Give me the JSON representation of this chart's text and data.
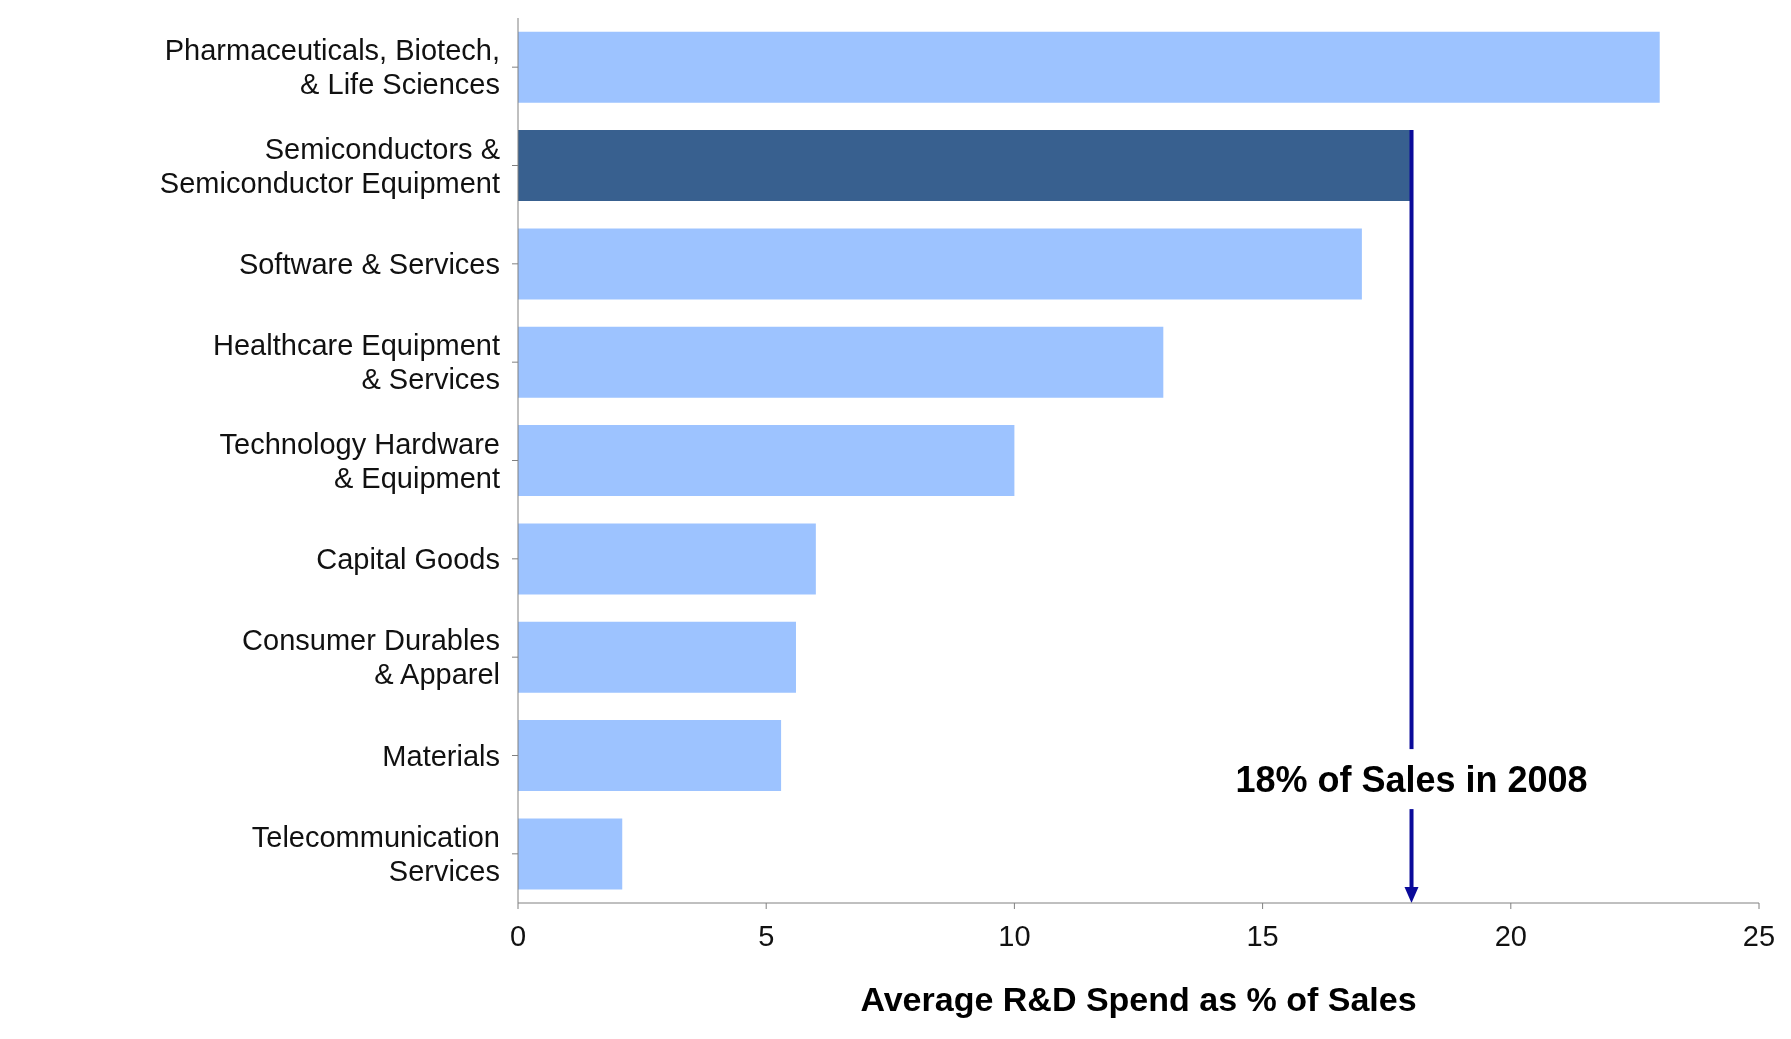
{
  "chart_data": {
    "type": "bar",
    "orientation": "horizontal",
    "xlabel": "Average R&D Spend as % of Sales",
    "categories": [
      "Pharmaceuticals, Biotech, & Life Sciences",
      "Semiconductors & Semiconductor Equipment",
      "Software & Services",
      "Healthcare Equipment & Services",
      "Technology Hardware & Equipment",
      "Capital Goods",
      "Consumer Durables & Apparel",
      "Materials",
      "Telecommunication Services"
    ],
    "values": [
      23,
      18,
      17,
      13,
      10,
      6,
      5.6,
      5.3,
      2.1
    ],
    "colors": [
      "#9dc3ff",
      "#38608f",
      "#9dc3ff",
      "#9dc3ff",
      "#9dc3ff",
      "#9dc3ff",
      "#9dc3ff",
      "#9dc3ff",
      "#9dc3ff"
    ],
    "xlim": [
      0,
      25
    ],
    "xticks": [
      0,
      5,
      10,
      15,
      20,
      25
    ],
    "grid": false,
    "ref_lines": [
      {
        "axis": "x",
        "value": 18,
        "label": "18% of Sales in 2008",
        "color": "#0a0a9a"
      }
    ]
  }
}
